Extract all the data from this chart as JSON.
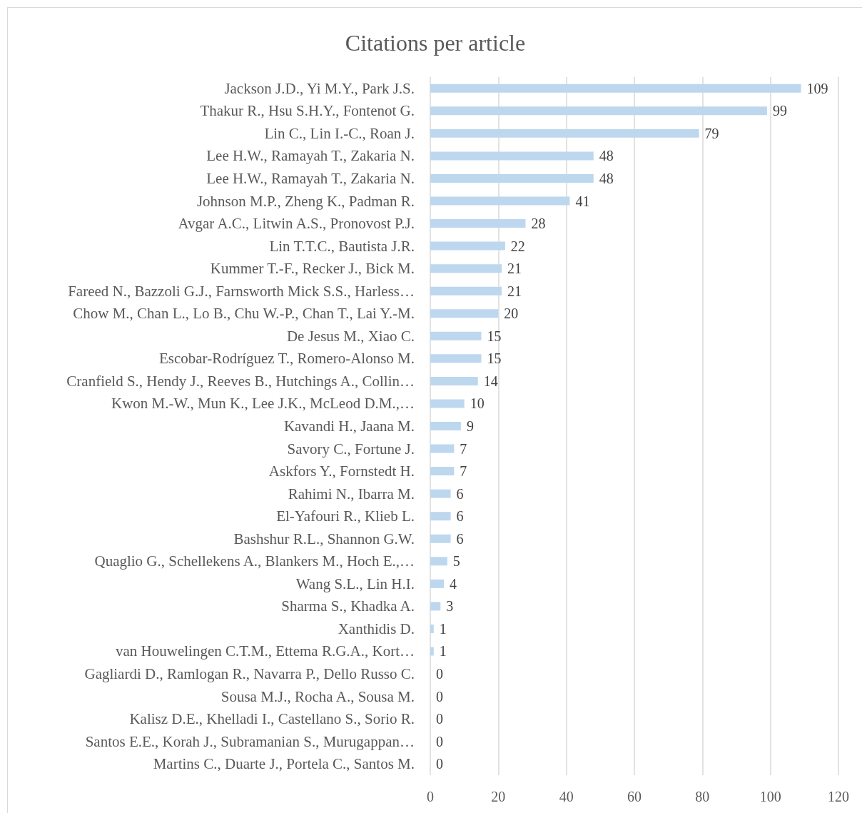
{
  "chart_data": {
    "type": "bar",
    "orientation": "horizontal",
    "title": "Citations per article",
    "categories": [
      "Jackson J.D., Yi M.Y., Park J.S.",
      "Thakur R., Hsu S.H.Y., Fontenot G.",
      "Lin C., Lin I.-C., Roan J.",
      "Lee H.W., Ramayah T., Zakaria N.",
      "Lee H.W., Ramayah T., Zakaria N.",
      "Johnson M.P., Zheng K., Padman R.",
      "Avgar A.C., Litwin A.S., Pronovost P.J.",
      "Lin T.T.C., Bautista J.R.",
      "Kummer T.-F., Recker J., Bick M.",
      "Fareed N., Bazzoli G.J., Farnsworth Mick S.S., Harless…",
      "Chow M., Chan L., Lo B., Chu W.-P., Chan T., Lai Y.-M.",
      "De Jesus M., Xiao C.",
      "Escobar-Rodríguez T., Romero-Alonso M.",
      "Cranfield S., Hendy J., Reeves B., Hutchings A., Collin…",
      "Kwon M.-W., Mun K., Lee J.K., McLeod D.M.,…",
      "Kavandi H., Jaana M.",
      "Savory C., Fortune J.",
      "Askfors Y., Fornstedt H.",
      "Rahimi N., Ibarra M.",
      "El-Yafouri R., Klieb L.",
      "Bashshur R.L., Shannon G.W.",
      "Quaglio G., Schellekens A., Blankers M., Hoch E.,…",
      "Wang S.L., Lin H.I.",
      "Sharma S., Khadka A.",
      "Xanthidis D.",
      "van Houwelingen C.T.M., Ettema R.G.A., Kort…",
      "Gagliardi D., Ramlogan R., Navarra P., Dello Russo C.",
      "Sousa M.J., Rocha A., Sousa M.",
      "Kalisz D.E., Khelladi I., Castellano S., Sorio R.",
      "Santos E.E., Korah J., Subramanian S., Murugappan…",
      "Martins C., Duarte J., Portela C., Santos M."
    ],
    "values": [
      109,
      99,
      79,
      48,
      48,
      41,
      28,
      22,
      21,
      21,
      20,
      15,
      15,
      14,
      10,
      9,
      7,
      7,
      6,
      6,
      6,
      5,
      4,
      3,
      1,
      1,
      0,
      0,
      0,
      0,
      0
    ],
    "color": "#bdd7ee",
    "xlim": [
      0,
      120
    ],
    "xticks": [
      0,
      20,
      40,
      60,
      80,
      100,
      120
    ],
    "grid": "x",
    "data_labels": true
  }
}
